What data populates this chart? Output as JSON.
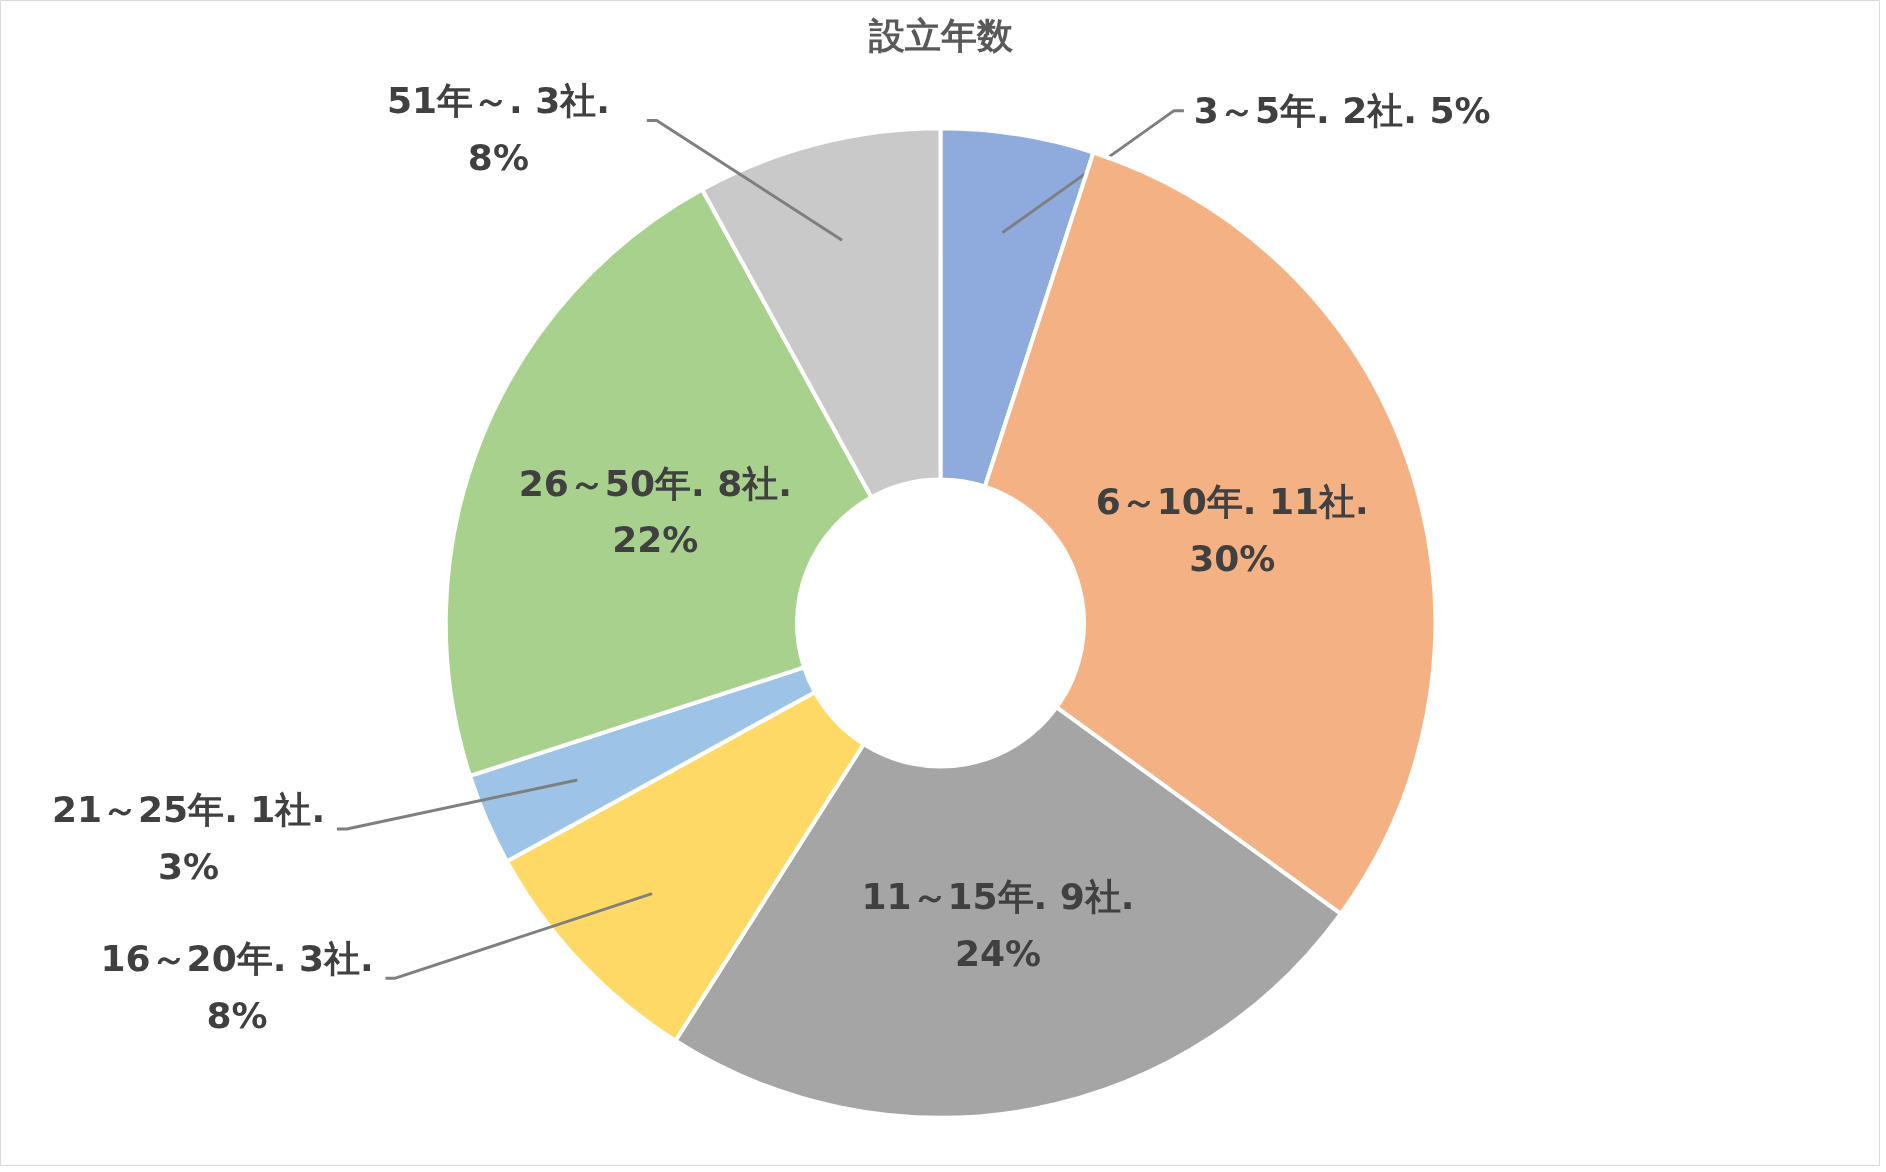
{
  "chart_data": {
    "type": "donut",
    "title": "設立年数",
    "categories": [
      "3～5年.",
      "6～10年.",
      "11～15年.",
      "16～20年.",
      "21～25年.",
      "26～50年.",
      "51年～."
    ],
    "values": [
      5,
      30,
      24,
      8,
      3,
      22,
      8
    ],
    "colors": [
      "#8faadc",
      "#f4b183",
      "#a5a5a5",
      "#ffd966",
      "#9dc3e6",
      "#a9d18e",
      "#c9c9c9"
    ],
    "value_labels": [
      "2社. 5%",
      "11社. 30%",
      "9社. 24%",
      "3社. 8%",
      "1社. 3%",
      "8社. 22%",
      "3社. 8%"
    ]
  }
}
